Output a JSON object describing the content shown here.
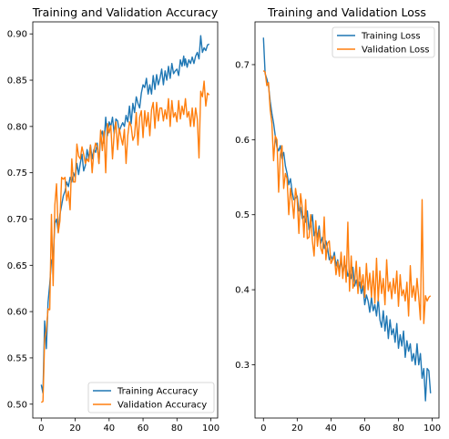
{
  "colors": {
    "training": "#1f77b4",
    "validation": "#ff7f0e"
  },
  "chart_data": [
    {
      "type": "line",
      "title": "Training and Validation Accuracy",
      "xlabel": "",
      "ylabel": "",
      "xlim": [
        -5,
        104
      ],
      "ylim": [
        0.485,
        0.913
      ],
      "xticks": [
        0,
        20,
        40,
        60,
        80,
        100
      ],
      "yticks": [
        0.5,
        0.55,
        0.6,
        0.65,
        0.7,
        0.75,
        0.8,
        0.85,
        0.9
      ],
      "ytick_labels": [
        "0.50",
        "0.55",
        "0.60",
        "0.65",
        "0.70",
        "0.75",
        "0.80",
        "0.85",
        "0.90"
      ],
      "grid": false,
      "legend_position": "lower-right",
      "series": [
        {
          "name": "Training Accuracy",
          "color_key": "training",
          "x": [
            0,
            1,
            2,
            3,
            4,
            5,
            6,
            7,
            8,
            9,
            10,
            11,
            12,
            13,
            14,
            15,
            16,
            17,
            18,
            19,
            20,
            21,
            22,
            23,
            24,
            25,
            26,
            27,
            28,
            29,
            30,
            31,
            32,
            33,
            34,
            35,
            36,
            37,
            38,
            39,
            40,
            41,
            42,
            43,
            44,
            45,
            46,
            47,
            48,
            49,
            50,
            51,
            52,
            53,
            54,
            55,
            56,
            57,
            58,
            59,
            60,
            61,
            62,
            63,
            64,
            65,
            66,
            67,
            68,
            69,
            70,
            71,
            72,
            73,
            74,
            75,
            76,
            77,
            78,
            79,
            80,
            81,
            82,
            83,
            84,
            84.5,
            85,
            86,
            87,
            88,
            89,
            90,
            91,
            92,
            93,
            94,
            95,
            96,
            97,
            98,
            99
          ],
          "y": [
            0.521,
            0.512,
            0.59,
            0.56,
            0.61,
            0.63,
            0.655,
            0.658,
            0.695,
            0.7,
            0.686,
            0.705,
            0.715,
            0.725,
            0.73,
            0.74,
            0.735,
            0.745,
            0.74,
            0.75,
            0.745,
            0.76,
            0.748,
            0.76,
            0.77,
            0.752,
            0.758,
            0.775,
            0.765,
            0.78,
            0.765,
            0.775,
            0.772,
            0.782,
            0.76,
            0.79,
            0.795,
            0.782,
            0.81,
            0.79,
            0.805,
            0.8,
            0.81,
            0.792,
            0.808,
            0.806,
            0.795,
            0.8,
            0.804,
            0.8,
            0.812,
            0.805,
            0.822,
            0.803,
            0.825,
            0.815,
            0.832,
            0.825,
            0.82,
            0.836,
            0.845,
            0.842,
            0.852,
            0.835,
            0.845,
            0.835,
            0.855,
            0.84,
            0.856,
            0.845,
            0.852,
            0.862,
            0.845,
            0.86,
            0.85,
            0.865,
            0.852,
            0.868,
            0.857,
            0.86,
            0.862,
            0.855,
            0.872,
            0.865,
            0.876,
            0.866,
            0.873,
            0.864,
            0.872,
            0.868,
            0.875,
            0.868,
            0.876,
            0.88,
            0.873,
            0.898,
            0.88,
            0.885,
            0.882,
            0.888,
            0.889
          ]
        },
        {
          "name": "Validation Accuracy",
          "color_key": "validation",
          "x": [
            0,
            1,
            2,
            3,
            4,
            5,
            6,
            7,
            8,
            9,
            10,
            11,
            12,
            13,
            14,
            15,
            16,
            17,
            18,
            19,
            20,
            21,
            22,
            23,
            24,
            25,
            26,
            27,
            28,
            29,
            30,
            31,
            32,
            33,
            34,
            35,
            36,
            37,
            38,
            39,
            40,
            41,
            42,
            43,
            44,
            45,
            46,
            47,
            48,
            49,
            50,
            51,
            52,
            53,
            54,
            55,
            56,
            57,
            58,
            59,
            60,
            61,
            62,
            63,
            64,
            65,
            66,
            67,
            68,
            69,
            70,
            71,
            72,
            73,
            74,
            75,
            76,
            77,
            78,
            79,
            80,
            81,
            82,
            83,
            84,
            85,
            86,
            87,
            88,
            89,
            90,
            91,
            92,
            93,
            94,
            95,
            96,
            97,
            98,
            99
          ],
          "y": [
            0.502,
            0.503,
            0.57,
            0.58,
            0.603,
            0.602,
            0.705,
            0.628,
            0.715,
            0.738,
            0.685,
            0.698,
            0.745,
            0.743,
            0.745,
            0.72,
            0.73,
            0.71,
            0.765,
            0.74,
            0.74,
            0.781,
            0.768,
            0.765,
            0.778,
            0.77,
            0.76,
            0.765,
            0.762,
            0.78,
            0.75,
            0.773,
            0.782,
            0.778,
            0.76,
            0.796,
            0.774,
            0.795,
            0.75,
            0.803,
            0.793,
            0.801,
            0.765,
            0.793,
            0.805,
            0.775,
            0.798,
            0.788,
            0.78,
            0.797,
            0.76,
            0.79,
            0.805,
            0.8,
            0.785,
            0.79,
            0.815,
            0.78,
            0.81,
            0.817,
            0.788,
            0.817,
            0.8,
            0.815,
            0.79,
            0.818,
            0.826,
            0.798,
            0.826,
            0.806,
            0.82,
            0.82,
            0.806,
            0.818,
            0.808,
            0.83,
            0.8,
            0.828,
            0.81,
            0.815,
            0.805,
            0.828,
            0.808,
            0.822,
            0.813,
            0.83,
            0.81,
            0.816,
            0.8,
            0.82,
            0.8,
            0.82,
            0.808,
            0.766,
            0.838,
            0.832,
            0.849,
            0.822,
            0.836,
            0.834
          ]
        }
      ]
    },
    {
      "type": "line",
      "title": "Training and Validation Loss",
      "xlabel": "",
      "ylabel": "",
      "xlim": [
        -5,
        104
      ],
      "ylim": [
        0.229,
        0.757
      ],
      "xticks": [
        0,
        20,
        40,
        60,
        80,
        100
      ],
      "yticks": [
        0.3,
        0.4,
        0.5,
        0.6,
        0.7
      ],
      "ytick_labels": [
        "0.3",
        "0.4",
        "0.5",
        "0.6",
        "0.7"
      ],
      "grid": false,
      "legend_position": "upper-right",
      "series": [
        {
          "name": "Training Loss",
          "color_key": "training",
          "x": [
            0,
            1,
            2,
            3,
            4,
            5,
            6,
            7,
            8,
            9,
            10,
            11,
            12,
            13,
            14,
            15,
            16,
            17,
            18,
            19,
            20,
            21,
            22,
            23,
            24,
            25,
            26,
            27,
            28,
            29,
            30,
            31,
            32,
            33,
            34,
            35,
            36,
            37,
            38,
            39,
            40,
            41,
            42,
            43,
            44,
            45,
            46,
            47,
            48,
            49,
            50,
            51,
            52,
            53,
            54,
            55,
            56,
            57,
            58,
            59,
            60,
            61,
            62,
            63,
            64,
            65,
            66,
            67,
            68,
            69,
            70,
            71,
            72,
            73,
            74,
            75,
            76,
            77,
            78,
            79,
            80,
            81,
            82,
            83,
            84,
            85,
            86,
            87,
            88,
            89,
            90,
            91,
            92,
            93,
            94,
            95,
            96,
            97,
            98,
            99
          ],
          "y": [
            0.736,
            0.688,
            0.681,
            0.672,
            0.651,
            0.635,
            0.622,
            0.605,
            0.59,
            0.585,
            0.592,
            0.575,
            0.583,
            0.565,
            0.555,
            0.54,
            0.548,
            0.53,
            0.52,
            0.522,
            0.525,
            0.505,
            0.51,
            0.495,
            0.498,
            0.49,
            0.505,
            0.48,
            0.485,
            0.5,
            0.472,
            0.48,
            0.47,
            0.485,
            0.462,
            0.47,
            0.455,
            0.465,
            0.455,
            0.44,
            0.445,
            0.44,
            0.45,
            0.432,
            0.44,
            0.425,
            0.44,
            0.42,
            0.435,
            0.43,
            0.418,
            0.425,
            0.415,
            0.43,
            0.405,
            0.413,
            0.401,
            0.41,
            0.395,
            0.405,
            0.38,
            0.393,
            0.385,
            0.37,
            0.39,
            0.372,
            0.38,
            0.365,
            0.388,
            0.36,
            0.35,
            0.372,
            0.345,
            0.365,
            0.335,
            0.36,
            0.34,
            0.348,
            0.33,
            0.355,
            0.322,
            0.34,
            0.325,
            0.345,
            0.31,
            0.332,
            0.318,
            0.328,
            0.305,
            0.315,
            0.3,
            0.328,
            0.3,
            0.315,
            0.282,
            0.295,
            0.252,
            0.295,
            0.292,
            0.262
          ]
        },
        {
          "name": "Validation Loss",
          "color_key": "validation",
          "x": [
            0,
            1,
            2,
            3,
            4,
            5,
            6,
            7,
            8,
            9,
            10,
            11,
            12,
            13,
            14,
            15,
            16,
            17,
            18,
            19,
            20,
            21,
            22,
            23,
            24,
            25,
            26,
            27,
            28,
            29,
            30,
            31,
            32,
            33,
            34,
            35,
            36,
            37,
            38,
            39,
            40,
            41,
            42,
            43,
            44,
            45,
            46,
            47,
            48,
            49,
            50,
            51,
            52,
            53,
            54,
            55,
            56,
            57,
            58,
            59,
            60,
            61,
            62,
            63,
            64,
            65,
            66,
            67,
            68,
            69,
            70,
            71,
            72,
            73,
            74,
            75,
            76,
            77,
            78,
            79,
            80,
            81,
            82,
            83,
            84,
            85,
            86,
            87,
            88,
            89,
            90,
            91,
            92,
            93,
            94,
            95,
            96,
            97,
            98,
            99
          ],
          "y": [
            0.692,
            0.69,
            0.672,
            0.676,
            0.64,
            0.622,
            0.572,
            0.605,
            0.6,
            0.53,
            0.58,
            0.592,
            0.535,
            0.555,
            0.548,
            0.5,
            0.535,
            0.518,
            0.495,
            0.535,
            0.52,
            0.475,
            0.528,
            0.51,
            0.47,
            0.52,
            0.468,
            0.47,
            0.5,
            0.465,
            0.445,
            0.492,
            0.458,
            0.48,
            0.455,
            0.448,
            0.497,
            0.44,
            0.462,
            0.465,
            0.435,
            0.44,
            0.445,
            0.42,
            0.438,
            0.418,
            0.45,
            0.415,
            0.445,
            0.41,
            0.49,
            0.398,
            0.445,
            0.402,
            0.41,
            0.438,
            0.395,
            0.43,
            0.402,
            0.42,
            0.39,
            0.435,
            0.4,
            0.422,
            0.39,
            0.425,
            0.382,
            0.442,
            0.385,
            0.425,
            0.395,
            0.415,
            0.38,
            0.44,
            0.398,
            0.41,
            0.388,
            0.415,
            0.395,
            0.425,
            0.378,
            0.42,
            0.392,
            0.4,
            0.385,
            0.41,
            0.365,
            0.432,
            0.39,
            0.405,
            0.385,
            0.415,
            0.39,
            0.36,
            0.52,
            0.355,
            0.392,
            0.385,
            0.39,
            0.392
          ]
        }
      ]
    }
  ]
}
